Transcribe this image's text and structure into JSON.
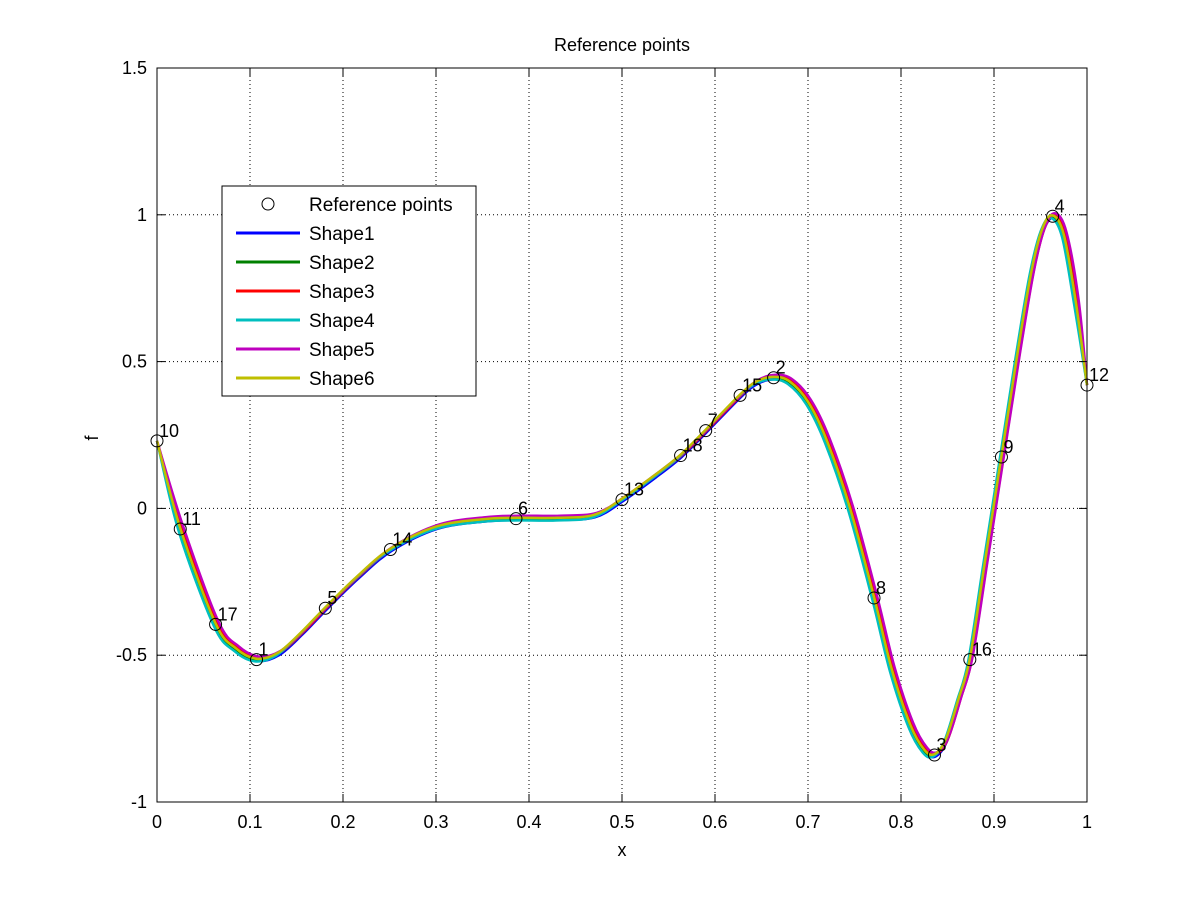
{
  "chart_data": {
    "type": "line",
    "title": "Reference points",
    "xlabel": "x",
    "ylabel": "f",
    "xlim": [
      0,
      1
    ],
    "ylim": [
      -1,
      1.5
    ],
    "xticks": [
      "0",
      "0.1",
      "0.2",
      "0.3",
      "0.4",
      "0.5",
      "0.6",
      "0.7",
      "0.8",
      "0.9",
      "1"
    ],
    "yticks": [
      "-1",
      "-0.5",
      "0",
      "0.5",
      "1",
      "1.5"
    ],
    "grid": true,
    "legend_position": "upper-left",
    "reference_points": {
      "name": "Reference points",
      "points": [
        {
          "label": "1",
          "x": 0.107,
          "y": -0.515
        },
        {
          "label": "2",
          "x": 0.663,
          "y": 0.445
        },
        {
          "label": "3",
          "x": 0.836,
          "y": -0.84
        },
        {
          "label": "4",
          "x": 0.963,
          "y": 0.995
        },
        {
          "label": "5",
          "x": 0.181,
          "y": -0.34
        },
        {
          "label": "6",
          "x": 0.386,
          "y": -0.035
        },
        {
          "label": "7",
          "x": 0.59,
          "y": 0.265
        },
        {
          "label": "8",
          "x": 0.771,
          "y": -0.305
        },
        {
          "label": "9",
          "x": 0.908,
          "y": 0.175
        },
        {
          "label": "10",
          "x": 0.0,
          "y": 0.23
        },
        {
          "label": "11",
          "x": 0.025,
          "y": -0.07
        },
        {
          "label": "12",
          "x": 1.0,
          "y": 0.42
        },
        {
          "label": "13",
          "x": 0.5,
          "y": 0.03
        },
        {
          "label": "14",
          "x": 0.251,
          "y": -0.14
        },
        {
          "label": "15",
          "x": 0.627,
          "y": 0.385
        },
        {
          "label": "16",
          "x": 0.874,
          "y": -0.515
        },
        {
          "label": "17",
          "x": 0.063,
          "y": -0.395
        },
        {
          "label": "18",
          "x": 0.563,
          "y": 0.18
        }
      ]
    },
    "base_curve": {
      "x": [
        0,
        0.025,
        0.063,
        0.085,
        0.107,
        0.13,
        0.155,
        0.181,
        0.215,
        0.251,
        0.3,
        0.35,
        0.386,
        0.43,
        0.47,
        0.5,
        0.535,
        0.563,
        0.59,
        0.627,
        0.645,
        0.663,
        0.68,
        0.7,
        0.72,
        0.745,
        0.771,
        0.79,
        0.81,
        0.825,
        0.836,
        0.848,
        0.862,
        0.874,
        0.89,
        0.908,
        0.925,
        0.94,
        0.952,
        0.963,
        0.975,
        0.988,
        1.0
      ],
      "y": [
        0.23,
        -0.07,
        -0.395,
        -0.48,
        -0.515,
        -0.495,
        -0.425,
        -0.34,
        -0.235,
        -0.14,
        -0.065,
        -0.04,
        -0.035,
        -0.035,
        -0.025,
        0.03,
        0.11,
        0.18,
        0.265,
        0.385,
        0.43,
        0.445,
        0.43,
        0.36,
        0.23,
        0.0,
        -0.305,
        -0.55,
        -0.74,
        -0.825,
        -0.84,
        -0.79,
        -0.65,
        -0.515,
        -0.19,
        0.175,
        0.52,
        0.8,
        0.95,
        0.995,
        0.93,
        0.7,
        0.42
      ]
    },
    "series": [
      {
        "name": "Shape1",
        "color": "#0000ff",
        "dx": 0.002,
        "dy": -0.005
      },
      {
        "name": "Shape2",
        "color": "#008000",
        "dx": -0.001,
        "dy": 0.0
      },
      {
        "name": "Shape3",
        "color": "#ff0000",
        "dx": 0.004,
        "dy": 0.004
      },
      {
        "name": "Shape4",
        "color": "#00bfbf",
        "dx": -0.003,
        "dy": -0.006
      },
      {
        "name": "Shape5",
        "color": "#bf00bf",
        "dx": 0.005,
        "dy": 0.01
      },
      {
        "name": "Shape6",
        "color": "#bfbf00",
        "dx": 0.0,
        "dy": 0.003
      }
    ]
  }
}
